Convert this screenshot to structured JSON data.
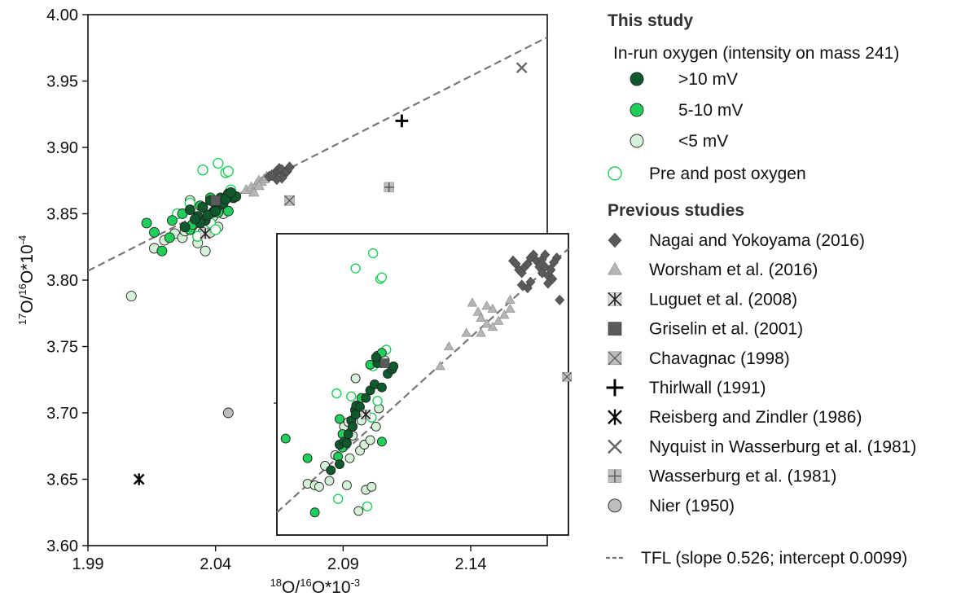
{
  "chart_data": {
    "type": "scatter",
    "title": "",
    "x_axis": {
      "label_main_pre": "",
      "label_sup_top": "18",
      "label_text1": "O/",
      "label_sup_top2": "16",
      "label_text2": "O*10",
      "label_exp": "-3",
      "range": [
        1.99,
        2.17
      ],
      "ticks": [
        "1.99",
        "2.04",
        "2.09",
        "2.14"
      ],
      "tick_values": [
        1.99,
        2.04,
        2.09,
        2.14
      ]
    },
    "y_axis": {
      "label_sup_top": "17",
      "label_text1": "O/",
      "label_sup_top2": "16",
      "label_text2": "O*10",
      "label_exp": "-4",
      "range": [
        3.6,
        4.0
      ],
      "ticks": [
        "3.60",
        "3.65",
        "3.70",
        "3.75",
        "3.80",
        "3.85",
        "3.90",
        "3.95",
        "4.00"
      ],
      "tick_values": [
        3.6,
        3.65,
        3.7,
        3.75,
        3.8,
        3.85,
        3.9,
        3.95,
        4.0
      ]
    },
    "tfl": {
      "slope": 0.526,
      "intercept": 0.0099,
      "y_at_xmin": 3.807,
      "y_at_xmax": 3.983
    },
    "series": [
      {
        "id": "gt10",
        "marker": "circle",
        "color": "#0e5a2c",
        "points": [
          [
            2.03,
            3.853
          ],
          [
            2.033,
            3.848
          ],
          [
            2.035,
            3.855
          ],
          [
            2.038,
            3.86
          ],
          [
            2.04,
            3.857
          ],
          [
            2.042,
            3.862
          ],
          [
            2.045,
            3.865
          ],
          [
            2.047,
            3.862
          ],
          [
            2.036,
            3.845
          ],
          [
            2.039,
            3.851
          ],
          [
            2.041,
            3.856
          ],
          [
            2.043,
            3.858
          ],
          [
            2.034,
            3.843
          ],
          [
            2.028,
            3.84
          ],
          [
            2.037,
            3.849
          ],
          [
            2.044,
            3.861
          ],
          [
            2.048,
            3.863
          ],
          [
            2.032,
            3.846
          ],
          [
            2.04,
            3.852
          ],
          [
            2.046,
            3.866
          ]
        ]
      },
      {
        "id": "5to10",
        "marker": "circle",
        "color": "#1fcf5a",
        "points": [
          [
            2.013,
            3.843
          ],
          [
            2.016,
            3.836
          ],
          [
            2.019,
            3.822
          ],
          [
            2.023,
            3.845
          ],
          [
            2.027,
            3.85
          ],
          [
            2.03,
            3.838
          ],
          [
            2.034,
            3.856
          ],
          [
            2.038,
            3.862
          ],
          [
            2.041,
            3.851
          ],
          [
            2.045,
            3.852
          ],
          [
            2.022,
            3.832
          ],
          [
            2.031,
            3.842
          ]
        ]
      },
      {
        "id": "lt5",
        "marker": "circle",
        "color": "#d5f2d8",
        "points": [
          [
            2.007,
            3.788
          ],
          [
            2.016,
            3.824
          ],
          [
            2.02,
            3.83
          ],
          [
            2.024,
            3.835
          ],
          [
            2.027,
            3.832
          ],
          [
            2.031,
            3.841
          ],
          [
            2.033,
            3.828
          ],
          [
            2.035,
            3.836
          ],
          [
            2.037,
            3.845
          ],
          [
            2.039,
            3.848
          ],
          [
            2.041,
            3.84
          ],
          [
            2.043,
            3.85
          ],
          [
            2.036,
            3.822
          ],
          [
            2.03,
            3.86
          ],
          [
            2.028,
            3.837
          ],
          [
            2.038,
            3.836
          ],
          [
            2.042,
            3.857
          ]
        ]
      },
      {
        "id": "prepost",
        "marker": "open-circle",
        "color": "#1fcf5a",
        "points": [
          [
            2.035,
            3.883
          ],
          [
            2.041,
            3.888
          ],
          [
            2.044,
            3.881
          ],
          [
            2.045,
            3.882
          ],
          [
            2.03,
            3.858
          ],
          [
            2.025,
            3.85
          ],
          [
            2.038,
            3.843
          ],
          [
            2.046,
            3.868
          ],
          [
            2.04,
            3.838
          ],
          [
            2.033,
            3.833
          ]
        ]
      },
      {
        "id": "nagai",
        "marker": "diamond",
        "color": "#5a5a5a",
        "points": [
          [
            2.061,
            3.878
          ],
          [
            2.063,
            3.88
          ],
          [
            2.064,
            3.882
          ],
          [
            2.065,
            3.884
          ],
          [
            2.066,
            3.883
          ],
          [
            2.067,
            3.88
          ],
          [
            2.068,
            3.882
          ],
          [
            2.069,
            3.885
          ],
          [
            2.066,
            3.877
          ],
          [
            2.064,
            3.876
          ],
          [
            2.062,
            3.879
          ]
        ]
      },
      {
        "id": "worsham",
        "marker": "triangle",
        "color": "#b5b5b5",
        "points": [
          [
            2.052,
            3.868
          ],
          [
            2.054,
            3.87
          ],
          [
            2.056,
            3.872
          ],
          [
            2.057,
            3.875
          ],
          [
            2.058,
            3.874
          ],
          [
            2.059,
            3.876
          ],
          [
            2.06,
            3.878
          ],
          [
            2.055,
            3.866
          ],
          [
            2.057,
            3.871
          ]
        ]
      },
      {
        "id": "luguet",
        "marker": "asterisk-square",
        "color": "#5a5a5a",
        "points": [
          [
            2.036,
            3.835
          ]
        ]
      },
      {
        "id": "griselin",
        "marker": "square",
        "color": "#5a5a5a",
        "points": [
          [
            2.04,
            3.86
          ]
        ]
      },
      {
        "id": "chavagnac",
        "marker": "x-square",
        "color": "#bdbdbd",
        "points": [
          [
            2.069,
            3.86
          ]
        ]
      },
      {
        "id": "thirlwall",
        "marker": "plus",
        "color": "#000000",
        "points": [
          [
            2.113,
            3.92
          ]
        ]
      },
      {
        "id": "reisberg",
        "marker": "asterisk",
        "color": "#000000",
        "points": [
          [
            2.01,
            3.65
          ]
        ]
      },
      {
        "id": "nyquist",
        "marker": "x",
        "color": "#666666",
        "points": [
          [
            2.16,
            3.96
          ]
        ]
      },
      {
        "id": "wasserburg",
        "marker": "plus-square",
        "color": "#bdbdbd",
        "points": [
          [
            2.108,
            3.87
          ]
        ]
      },
      {
        "id": "nier",
        "marker": "circle",
        "color": "#bdbdbd",
        "points": [
          [
            2.045,
            3.7
          ]
        ]
      }
    ],
    "inset": {
      "note": "magnified view of the data cluster",
      "points": {
        "gt10": [
          [
            0.185,
            0.785
          ],
          [
            0.215,
            0.7
          ],
          [
            0.23,
            0.69
          ],
          [
            0.245,
            0.665
          ],
          [
            0.255,
            0.62
          ],
          [
            0.26,
            0.64
          ],
          [
            0.268,
            0.585
          ],
          [
            0.272,
            0.57
          ],
          [
            0.285,
            0.575
          ],
          [
            0.305,
            0.545
          ],
          [
            0.32,
            0.52
          ],
          [
            0.335,
            0.5
          ],
          [
            0.345,
            0.43
          ],
          [
            0.36,
            0.51
          ],
          [
            0.38,
            0.465
          ],
          [
            0.395,
            0.45
          ],
          [
            0.4,
            0.44
          ],
          [
            0.24,
            0.695
          ],
          [
            0.27,
            0.6
          ],
          [
            0.34,
            0.41
          ],
          [
            0.215,
            0.765
          ]
        ],
        "5to10": [
          [
            0.03,
            0.68
          ],
          [
            0.105,
            0.745
          ],
          [
            0.13,
            0.925
          ],
          [
            0.215,
            0.615
          ],
          [
            0.225,
            0.665
          ],
          [
            0.26,
            0.64
          ],
          [
            0.29,
            0.545
          ],
          [
            0.32,
            0.435
          ],
          [
            0.345,
            0.405
          ],
          [
            0.36,
            0.395
          ],
          [
            0.36,
            0.69
          ],
          [
            0.225,
            0.71
          ],
          [
            0.21,
            0.74
          ]
        ],
        "lt5": [
          [
            0.105,
            0.83
          ],
          [
            0.13,
            0.835
          ],
          [
            0.145,
            0.84
          ],
          [
            0.165,
            0.77
          ],
          [
            0.18,
            0.82
          ],
          [
            0.2,
            0.735
          ],
          [
            0.22,
            0.7
          ],
          [
            0.23,
            0.64
          ],
          [
            0.245,
            0.625
          ],
          [
            0.26,
            0.67
          ],
          [
            0.285,
            0.72
          ],
          [
            0.3,
            0.7
          ],
          [
            0.32,
            0.685
          ],
          [
            0.34,
            0.64
          ],
          [
            0.35,
            0.58
          ],
          [
            0.28,
            0.92
          ],
          [
            0.305,
            0.85
          ],
          [
            0.325,
            0.84
          ],
          [
            0.24,
            0.835
          ],
          [
            0.27,
            0.48
          ],
          [
            0.37,
            0.42
          ],
          [
            0.29,
            0.62
          ],
          [
            0.25,
            0.745
          ]
        ],
        "prepost": [
          [
            0.27,
            0.115
          ],
          [
            0.33,
            0.065
          ],
          [
            0.355,
            0.15
          ],
          [
            0.36,
            0.145
          ],
          [
            0.205,
            0.53
          ],
          [
            0.21,
            0.88
          ],
          [
            0.345,
            0.555
          ],
          [
            0.325,
            0.61
          ],
          [
            0.28,
            0.575
          ],
          [
            0.255,
            0.54
          ],
          [
            0.33,
            0.44
          ],
          [
            0.375,
            0.385
          ],
          [
            0.31,
            0.905
          ]
        ],
        "nagai": [
          [
            0.81,
            0.09
          ],
          [
            0.82,
            0.1
          ],
          [
            0.83,
            0.12
          ],
          [
            0.84,
            0.13
          ],
          [
            0.85,
            0.11
          ],
          [
            0.86,
            0.1
          ],
          [
            0.87,
            0.08
          ],
          [
            0.88,
            0.07
          ],
          [
            0.89,
            0.09
          ],
          [
            0.9,
            0.11
          ],
          [
            0.91,
            0.13
          ],
          [
            0.92,
            0.11
          ],
          [
            0.93,
            0.14
          ],
          [
            0.94,
            0.12
          ],
          [
            0.96,
            0.08
          ],
          [
            0.95,
            0.095
          ],
          [
            0.93,
            0.165
          ],
          [
            0.945,
            0.15
          ],
          [
            0.87,
            0.16
          ],
          [
            0.86,
            0.18
          ],
          [
            0.84,
            0.17
          ],
          [
            0.97,
            0.22
          ],
          [
            0.91,
            0.085
          ],
          [
            0.92,
            0.07
          ]
        ],
        "worsham": [
          [
            0.67,
            0.23
          ],
          [
            0.69,
            0.26
          ],
          [
            0.7,
            0.28
          ],
          [
            0.72,
            0.3
          ],
          [
            0.74,
            0.31
          ],
          [
            0.76,
            0.29
          ],
          [
            0.78,
            0.27
          ],
          [
            0.8,
            0.25
          ],
          [
            0.7,
            0.33
          ],
          [
            0.72,
            0.24
          ],
          [
            0.74,
            0.25
          ],
          [
            0.65,
            0.33
          ],
          [
            0.59,
            0.375
          ],
          [
            0.56,
            0.44
          ],
          [
            0.8,
            0.22
          ]
        ],
        "luguet": [
          [
            0.305,
            0.6
          ]
        ],
        "griselin": [
          [
            0.37,
            0.43
          ]
        ],
        "chavagnac": [
          [
            0.995,
            0.475
          ]
        ],
        "wasserburg_line": [],
        "tfl": {
          "x0": 0.0,
          "y0": 0.925,
          "x1": 1.0,
          "y1": 0.05
        }
      }
    }
  },
  "legend": {
    "this_study_title": "This study",
    "in_run_title": "In-run oxygen (intensity on mass 241)",
    "items_in_run": [
      {
        "id": "gt10",
        "label": ">10 mV"
      },
      {
        "id": "5to10",
        "label": "5-10 mV"
      },
      {
        "id": "lt5",
        "label": "<5 mV"
      }
    ],
    "pre_post_label": "Pre and post oxygen",
    "previous_title": "Previous studies",
    "items_previous": [
      {
        "id": "nagai",
        "label": "Nagai and Yokoyama (2016)"
      },
      {
        "id": "worsham",
        "label": "Worsham et al. (2016)"
      },
      {
        "id": "luguet",
        "label": "Luguet et al. (2008)"
      },
      {
        "id": "griselin",
        "label": "Griselin et al. (2001)"
      },
      {
        "id": "chavagnac",
        "label": "Chavagnac (1998)"
      },
      {
        "id": "thirlwall",
        "label": "Thirlwall (1991)"
      },
      {
        "id": "reisberg",
        "label": "Reisberg and Zindler (1986)"
      },
      {
        "id": "nyquist",
        "label": "Nyquist in Wasserburg et al. (1981)"
      },
      {
        "id": "wasserburg",
        "label": "Wasserburg et al. (1981)"
      },
      {
        "id": "nier",
        "label": "Nier (1950)"
      }
    ],
    "tfl_label": "TFL (slope 0.526; intercept 0.0099)"
  }
}
